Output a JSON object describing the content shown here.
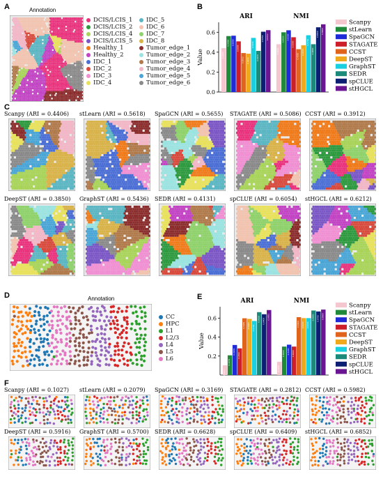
{
  "panel_labels": {
    "a": "A",
    "b": "B",
    "c": "C",
    "d": "D",
    "e": "E",
    "f": "F"
  },
  "panel_a": {
    "title": "Annotation",
    "legend": [
      {
        "name": "DCIS/LCIS_1",
        "color": "#e9337d"
      },
      {
        "name": "DCIS/LCIS_2",
        "color": "#2e9a3f"
      },
      {
        "name": "DCIS/LCIS_4",
        "color": "#a8d45a"
      },
      {
        "name": "DCIS/LCIS_5",
        "color": "#7b57c6"
      },
      {
        "name": "Healthy_1",
        "color": "#f07b1b"
      },
      {
        "name": "Healthy_2",
        "color": "#c243c4"
      },
      {
        "name": "IDC_1",
        "color": "#4c6fd6"
      },
      {
        "name": "IDC_2",
        "color": "#d84a3c"
      },
      {
        "name": "IDC_3",
        "color": "#f08fd2"
      },
      {
        "name": "IDC_4",
        "color": "#e8e15b"
      },
      {
        "name": "IDC_5",
        "color": "#5bb6c4"
      },
      {
        "name": "IDC_6",
        "color": "#f2c4b0"
      },
      {
        "name": "IDC_7",
        "color": "#8fd16a"
      },
      {
        "name": "IDC_8",
        "color": "#d9b34a"
      },
      {
        "name": "Tumor_edge_1",
        "color": "#8c2d2d"
      },
      {
        "name": "Tumor_edge_2",
        "color": "#9be3e0"
      },
      {
        "name": "Tumor_edge_3",
        "color": "#b07a4a"
      },
      {
        "name": "Tumor_edge_4",
        "color": "#f2b6c6"
      },
      {
        "name": "Tumor_edge_5",
        "color": "#4aa6d6"
      },
      {
        "name": "Tumor_edge_6",
        "color": "#8a8a8a"
      }
    ]
  },
  "panel_c": {
    "thumbnails": [
      {
        "title": "Scanpy (ARI = 0.4406)"
      },
      {
        "title": "stLearn (ARI = 0.5618)"
      },
      {
        "title": "SpaGCN (ARI = 0.5655)"
      },
      {
        "title": "STAGATE (ARI = 0.5086)"
      },
      {
        "title": "CCST (ARI = 0.3912)"
      },
      {
        "title": "DeepST (ARI = 0.3850)"
      },
      {
        "title": "GraphST (ARI = 0.5436)"
      },
      {
        "title": "SEDR (ARI = 0.4131)"
      },
      {
        "title": "spCLUE (ARI = 0.6054)"
      },
      {
        "title": "stHGCL (ARI = 0.6212)"
      }
    ]
  },
  "panel_d": {
    "title": "Annotation",
    "legend": [
      {
        "name": "CC",
        "color": "#1f77b4"
      },
      {
        "name": "HPC",
        "color": "#ff7f0e"
      },
      {
        "name": "L1",
        "color": "#2ca02c"
      },
      {
        "name": "L2/3",
        "color": "#d62728"
      },
      {
        "name": "L4",
        "color": "#9467bd"
      },
      {
        "name": "L5",
        "color": "#8c564b"
      },
      {
        "name": "L6",
        "color": "#e377c2"
      }
    ]
  },
  "panel_f": {
    "thumbnails": [
      {
        "title": "Scanpy (ARI = 0.1027)"
      },
      {
        "title": "stLearn (ARI = 0.2079)"
      },
      {
        "title": "SpaGCN (ARI = 0.3169)"
      },
      {
        "title": "STAGATE (ARI = 0.2812)"
      },
      {
        "title": "CCST (ARI = 0.5982)"
      },
      {
        "title": "DeepST (ARI = 0.5916)"
      },
      {
        "title": "GraphST (ARI = 0.5700)"
      },
      {
        "title": "SEDR (ARI = 0.6628)"
      },
      {
        "title": "spCLUE (ARI = 0.6409)"
      },
      {
        "title": "stHGCL (ARI = 0.6852)"
      }
    ]
  },
  "method_colors": {
    "Scanpy": "#f4c7cf",
    "stLearn": "#1e8a3a",
    "SpaGCN": "#1f2bd6",
    "STAGATE": "#cc1f2a",
    "CCST": "#e0641c",
    "DeepST": "#f0a81c",
    "GraphST": "#18d0e0",
    "SEDR": "#1b8a7a",
    "spCLUE": "#0d1f73",
    "stHGCL": "#6a1591"
  },
  "chart_data": [
    {
      "type": "bar",
      "panel": "B",
      "categories": [
        "ARI",
        "NMI"
      ],
      "ylabel": "Value",
      "ylim": [
        0,
        0.7
      ],
      "yticks": [
        0.0,
        0.2,
        0.4,
        0.6
      ],
      "series": [
        {
          "name": "Scanpy",
          "values": [
            0.4406,
            0.48
          ]
        },
        {
          "name": "stLearn",
          "values": [
            0.5618,
            0.6
          ]
        },
        {
          "name": "SpaGCN",
          "values": [
            0.5655,
            0.62
          ]
        },
        {
          "name": "STAGATE",
          "values": [
            0.5086,
            0.55
          ]
        },
        {
          "name": "CCST",
          "values": [
            0.3912,
            0.43
          ]
        },
        {
          "name": "DeepST",
          "values": [
            0.385,
            0.47
          ]
        },
        {
          "name": "GraphST",
          "values": [
            0.5436,
            0.57
          ]
        },
        {
          "name": "SEDR",
          "values": [
            0.4131,
            0.48
          ]
        },
        {
          "name": "spCLUE",
          "values": [
            0.6054,
            0.65
          ]
        },
        {
          "name": "stHGCL",
          "values": [
            0.6212,
            0.68
          ]
        }
      ]
    },
    {
      "type": "bar",
      "panel": "E",
      "categories": [
        "ARI",
        "NMI"
      ],
      "ylabel": "Value",
      "ylim": [
        0,
        0.72
      ],
      "yticks": [
        0.2,
        0.4,
        0.6
      ],
      "series": [
        {
          "name": "Scanpy",
          "values": [
            0.1027,
            0.14
          ]
        },
        {
          "name": "stLearn",
          "values": [
            0.2079,
            0.3
          ]
        },
        {
          "name": "SpaGCN",
          "values": [
            0.3169,
            0.32
          ]
        },
        {
          "name": "STAGATE",
          "values": [
            0.2812,
            0.3
          ]
        },
        {
          "name": "CCST",
          "values": [
            0.5982,
            0.61
          ]
        },
        {
          "name": "DeepST",
          "values": [
            0.5916,
            0.6
          ]
        },
        {
          "name": "GraphST",
          "values": [
            0.57,
            0.6
          ]
        },
        {
          "name": "SEDR",
          "values": [
            0.6628,
            0.68
          ]
        },
        {
          "name": "spCLUE",
          "values": [
            0.6409,
            0.67
          ]
        },
        {
          "name": "stHGCL",
          "values": [
            0.6852,
            0.69
          ]
        }
      ]
    }
  ]
}
